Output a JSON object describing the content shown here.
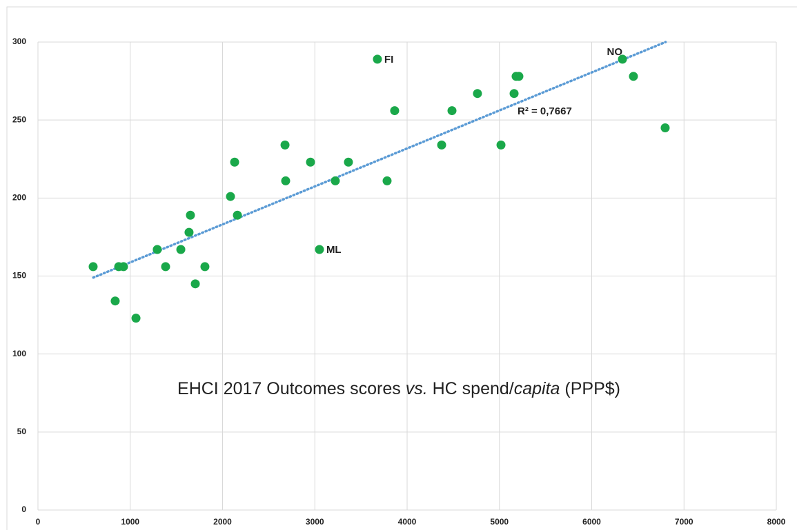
{
  "chart_data": {
    "type": "scatter",
    "title": [
      "EHCI 2017 Outcomes scores ",
      "vs.",
      " HC spend/",
      "capita",
      " (PPP$)"
    ],
    "title_italic": [
      false,
      true,
      false,
      true,
      false
    ],
    "x": [
      598,
      837,
      875,
      927,
      1062,
      1293,
      1383,
      1548,
      1637,
      1652,
      1705,
      1809,
      2086,
      2131,
      2161,
      2677,
      2684,
      2953,
      3050,
      3222,
      3364,
      3678,
      3783,
      3865,
      4374,
      4486,
      4762,
      5017,
      5159,
      5181,
      5211,
      6333,
      6452,
      6796
    ],
    "values": [
      156,
      134,
      156,
      156,
      123,
      167,
      156,
      167,
      178,
      189,
      145,
      156,
      201,
      223,
      189,
      234,
      211,
      223,
      167,
      211,
      223,
      289,
      211,
      256,
      234,
      256,
      267,
      234,
      267,
      278,
      278,
      289,
      278,
      245
    ],
    "color": "#1aa84a",
    "xlim": [
      0,
      8000
    ],
    "xticks": [
      0,
      1000,
      2000,
      3000,
      4000,
      5000,
      6000,
      7000,
      8000
    ],
    "ylim": [
      0,
      300
    ],
    "yticks": [
      0,
      50,
      100,
      150,
      200,
      250,
      300
    ],
    "grid": true,
    "trendline": {
      "x": [
        600,
        6800
      ],
      "y": [
        149,
        300
      ],
      "color": "#5b9bd5",
      "label": "R² = 0,7667"
    },
    "annotations": [
      {
        "text": "FI",
        "x": 3678,
        "y": 289,
        "position": "right"
      },
      {
        "text": "ML",
        "x": 3050,
        "y": 167,
        "position": "right"
      },
      {
        "text": "NO",
        "x": 6333,
        "y": 289,
        "position": "left"
      }
    ]
  }
}
